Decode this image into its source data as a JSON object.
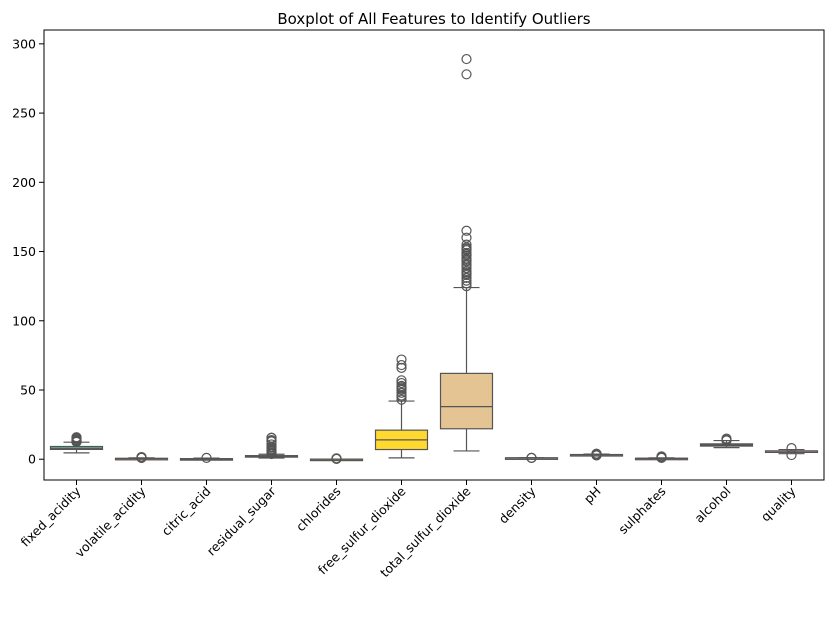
{
  "chart_data": {
    "type": "boxplot",
    "title": "Boxplot of All Features to Identify Outliers",
    "xlabel": "",
    "ylabel": "",
    "ylim": [
      -15,
      310
    ],
    "yticks": [
      0,
      50,
      100,
      150,
      200,
      250,
      300
    ],
    "grid": false,
    "legend": "none",
    "series": [
      {
        "name": "fixed_acidity",
        "color": "#66c2a5",
        "whisker_low": 4.6,
        "q1": 7.1,
        "median": 7.9,
        "q3": 9.2,
        "whisker_high": 12.3,
        "outliers": [
          12.5,
          12.8,
          13.0,
          13.3,
          13.7,
          14.0,
          14.3,
          15.0,
          15.6,
          15.9
        ]
      },
      {
        "name": "volatile_acidity",
        "color": "#fc8d62",
        "whisker_low": 0.12,
        "q1": 0.39,
        "median": 0.52,
        "q3": 0.64,
        "whisker_high": 1.02,
        "outliers": [
          1.04,
          1.09,
          1.13,
          1.18,
          1.24,
          1.33,
          1.58
        ]
      },
      {
        "name": "citric_acid",
        "color": "#8da0cb",
        "whisker_low": 0.0,
        "q1": 0.09,
        "median": 0.26,
        "q3": 0.42,
        "whisker_high": 0.79,
        "outliers": [
          1.0
        ]
      },
      {
        "name": "residual_sugar",
        "color": "#e78ac3",
        "whisker_low": 0.9,
        "q1": 1.9,
        "median": 2.2,
        "q3": 2.6,
        "whisker_high": 3.6,
        "outliers": [
          3.8,
          4.3,
          5.0,
          5.8,
          6.4,
          7.2,
          8.3,
          9.0,
          10.7,
          12.9,
          13.4,
          13.8,
          15.4,
          15.5
        ]
      },
      {
        "name": "chlorides",
        "color": "#a6d854",
        "whisker_low": 0.012,
        "q1": 0.07,
        "median": 0.079,
        "q3": 0.09,
        "whisker_high": 0.119,
        "outliers": [
          0.2,
          0.4,
          0.61
        ]
      },
      {
        "name": "free_sulfur_dioxide",
        "color": "#ffd92f",
        "whisker_low": 1,
        "q1": 7,
        "median": 14,
        "q3": 21,
        "whisker_high": 42,
        "outliers": [
          43,
          45,
          46,
          48,
          50,
          51,
          52,
          53,
          55,
          57,
          66,
          68,
          72
        ]
      },
      {
        "name": "total_sulfur_dioxide",
        "color": "#e5c494",
        "whisker_low": 6,
        "q1": 22,
        "median": 38,
        "q3": 62,
        "whisker_high": 124,
        "outliers": [
          125,
          127,
          129,
          131,
          133,
          134,
          135,
          136,
          138,
          140,
          141,
          143,
          144,
          145,
          147,
          148,
          149,
          151,
          152,
          153,
          155,
          160,
          165,
          278,
          289
        ]
      },
      {
        "name": "density",
        "color": "#b3b3b3",
        "whisker_low": 0.99,
        "q1": 0.9956,
        "median": 0.9968,
        "q3": 0.9978,
        "whisker_high": 1.001,
        "outliers": [
          0.99,
          1.003
        ]
      },
      {
        "name": "pH",
        "color": "#66c2a5",
        "whisker_low": 2.92,
        "q1": 3.21,
        "median": 3.31,
        "q3": 3.4,
        "whisker_high": 3.68,
        "outliers": [
          2.74,
          2.86,
          3.69,
          3.75,
          3.85,
          4.01
        ]
      },
      {
        "name": "sulphates",
        "color": "#fc8d62",
        "whisker_low": 0.33,
        "q1": 0.55,
        "median": 0.62,
        "q3": 0.73,
        "whisker_high": 1.0,
        "outliers": [
          1.02,
          1.1,
          1.2,
          1.36,
          1.59,
          1.95,
          2.0
        ]
      },
      {
        "name": "alcohol",
        "color": "#8da0cb",
        "whisker_low": 8.4,
        "q1": 9.5,
        "median": 10.2,
        "q3": 11.1,
        "whisker_high": 13.5,
        "outliers": [
          13.6,
          14.0,
          14.9
        ]
      },
      {
        "name": "quality",
        "color": "#e78ac3",
        "whisker_low": 4,
        "q1": 5,
        "median": 6,
        "q3": 6,
        "whisker_high": 7,
        "outliers": [
          3,
          8
        ]
      }
    ]
  }
}
